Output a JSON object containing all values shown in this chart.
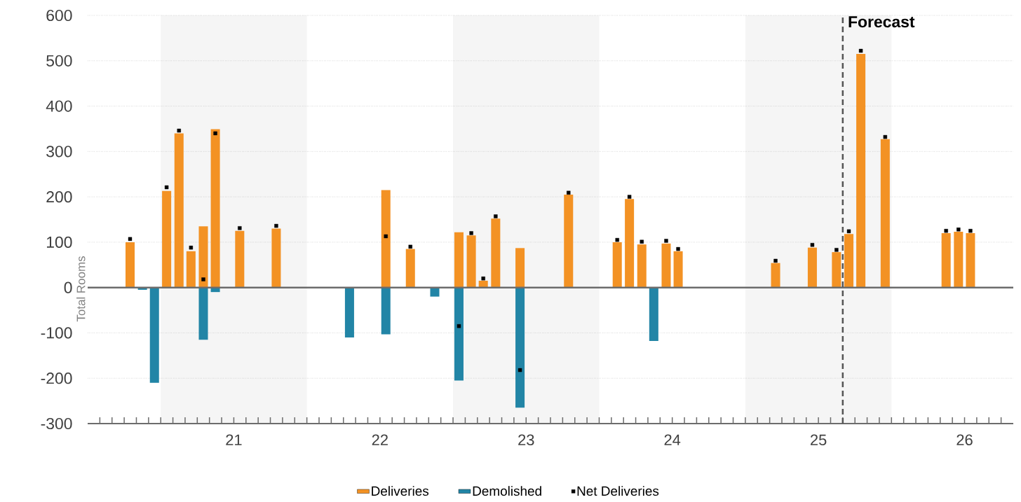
{
  "chart_data": {
    "type": "bar",
    "ylabel": "Total Rooms",
    "xlim": [
      "2020-07",
      "2026-11"
    ],
    "ylim": [
      -300,
      600
    ],
    "yticks": [
      -300,
      -200,
      -100,
      0,
      100,
      200,
      300,
      400,
      500,
      600
    ],
    "xticks": [
      {
        "value": "2020-08",
        "label": null
      },
      {
        "value": "2020-09",
        "label": null
      },
      {
        "value": "2020-10",
        "label": null
      },
      {
        "value": "2020-11",
        "label": null
      },
      {
        "value": "2020-12",
        "label": null
      },
      {
        "value": "2021-01",
        "label": null
      },
      {
        "value": "2021-02",
        "label": null
      },
      {
        "value": "2021-03",
        "label": null
      },
      {
        "value": "2021-04",
        "label": null
      },
      {
        "value": "2021-05",
        "label": null
      },
      {
        "value": "2021-06",
        "label": null
      },
      {
        "value": "2021-07",
        "label": "21"
      },
      {
        "value": "2021-08",
        "label": null
      },
      {
        "value": "2021-09",
        "label": null
      },
      {
        "value": "2021-10",
        "label": null
      },
      {
        "value": "2021-11",
        "label": null
      },
      {
        "value": "2021-12",
        "label": null
      },
      {
        "value": "2022-01",
        "label": null
      },
      {
        "value": "2022-02",
        "label": null
      },
      {
        "value": "2022-03",
        "label": null
      },
      {
        "value": "2022-04",
        "label": null
      },
      {
        "value": "2022-05",
        "label": null
      },
      {
        "value": "2022-06",
        "label": null
      },
      {
        "value": "2022-07",
        "label": "22"
      },
      {
        "value": "2022-08",
        "label": null
      },
      {
        "value": "2022-09",
        "label": null
      },
      {
        "value": "2022-10",
        "label": null
      },
      {
        "value": "2022-11",
        "label": null
      },
      {
        "value": "2022-12",
        "label": null
      },
      {
        "value": "2023-01",
        "label": null
      },
      {
        "value": "2023-02",
        "label": null
      },
      {
        "value": "2023-03",
        "label": null
      },
      {
        "value": "2023-04",
        "label": null
      },
      {
        "value": "2023-05",
        "label": null
      },
      {
        "value": "2023-06",
        "label": null
      },
      {
        "value": "2023-07",
        "label": "23"
      },
      {
        "value": "2023-08",
        "label": null
      },
      {
        "value": "2023-09",
        "label": null
      },
      {
        "value": "2023-10",
        "label": null
      },
      {
        "value": "2023-11",
        "label": null
      },
      {
        "value": "2023-12",
        "label": null
      },
      {
        "value": "2024-01",
        "label": null
      },
      {
        "value": "2024-02",
        "label": null
      },
      {
        "value": "2024-03",
        "label": null
      },
      {
        "value": "2024-04",
        "label": null
      },
      {
        "value": "2024-05",
        "label": null
      },
      {
        "value": "2024-06",
        "label": null
      },
      {
        "value": "2024-07",
        "label": "24"
      },
      {
        "value": "2024-08",
        "label": null
      },
      {
        "value": "2024-09",
        "label": null
      },
      {
        "value": "2024-10",
        "label": null
      },
      {
        "value": "2024-11",
        "label": null
      },
      {
        "value": "2024-12",
        "label": null
      },
      {
        "value": "2025-01",
        "label": null
      },
      {
        "value": "2025-02",
        "label": null
      },
      {
        "value": "2025-03",
        "label": null
      },
      {
        "value": "2025-04",
        "label": null
      },
      {
        "value": "2025-05",
        "label": null
      },
      {
        "value": "2025-06",
        "label": null
      },
      {
        "value": "2025-07",
        "label": "25"
      },
      {
        "value": "2025-08",
        "label": null
      },
      {
        "value": "2025-09",
        "label": null
      },
      {
        "value": "2025-10",
        "label": null
      },
      {
        "value": "2025-11",
        "label": null
      },
      {
        "value": "2025-12",
        "label": null
      },
      {
        "value": "2026-01",
        "label": null
      },
      {
        "value": "2026-02",
        "label": null
      },
      {
        "value": "2026-03",
        "label": null
      },
      {
        "value": "2026-04",
        "label": null
      },
      {
        "value": "2026-05",
        "label": null
      },
      {
        "value": "2026-06",
        "label": null
      },
      {
        "value": "2026-07",
        "label": "26"
      },
      {
        "value": "2026-08",
        "label": null
      },
      {
        "value": "2026-09",
        "label": null
      },
      {
        "value": "2026-10",
        "label": null
      }
    ],
    "grid": "y",
    "legend": "bottom",
    "bands": [
      {
        "axis": "x",
        "from": "2021-01",
        "to": "2022-01",
        "color": "#f5f5f5"
      },
      {
        "axis": "x",
        "from": "2023-01",
        "to": "2024-01",
        "color": "#f5f5f5"
      },
      {
        "axis": "x",
        "from": "2025-01",
        "to": "2026-01",
        "color": "#f5f5f5"
      }
    ],
    "ref_lines": [
      {
        "axis": "x",
        "value": "2025-09",
        "label": "Forecast",
        "color": "#555555",
        "line_style": "dashed"
      }
    ],
    "series": [
      {
        "name": "Deliveries",
        "color": "#f39224",
        "x": [
          "2020-10-16",
          "2021-01-16",
          "2021-02-15",
          "2021-03-16",
          "2021-04-16",
          "2021-05-16",
          "2021-07-16",
          "2021-10-16",
          "2022-07-16",
          "2022-09-16",
          "2023-01-16",
          "2023-02-15",
          "2023-03-16",
          "2023-04-16",
          "2023-06-16",
          "2023-10-16",
          "2024-02-15",
          "2024-03-16",
          "2024-04-16",
          "2024-06-16",
          "2024-07-16",
          "2025-03-16",
          "2025-06-16",
          "2025-08-16",
          "2025-09-16",
          "2025-10-16",
          "2025-12-16",
          "2026-05-16",
          "2026-06-16",
          "2026-07-16"
        ],
        "values": [
          100,
          213,
          340,
          80,
          135,
          349,
          125,
          130,
          215,
          85,
          122,
          115,
          15,
          152,
          87,
          205,
          100,
          195,
          95,
          97,
          80,
          54,
          88,
          78,
          118,
          515,
          327,
          120,
          123,
          120
        ]
      },
      {
        "name": "Demolished",
        "color": "#2285a6",
        "x": [
          "2020-11-16",
          "2020-12-16",
          "2021-04-16",
          "2021-05-16",
          "2022-04-16",
          "2022-07-16",
          "2022-11-16",
          "2023-01-16",
          "2023-06-16",
          "2024-05-16"
        ],
        "values": [
          -5,
          -210,
          -115,
          -10,
          -110,
          -103,
          -20,
          -205,
          -265,
          -118
        ]
      },
      {
        "name": "Net Deliveries",
        "type": "scatter",
        "marker": "square",
        "color": "#000000",
        "x": [
          "2020-10-16",
          "2021-01-16",
          "2021-02-15",
          "2021-03-16",
          "2021-04-16",
          "2021-05-16",
          "2021-07-16",
          "2021-10-16",
          "2022-07-16",
          "2022-09-16",
          "2023-01-16",
          "2023-02-15",
          "2023-03-16",
          "2023-04-16",
          "2023-06-16",
          "2023-10-16",
          "2024-02-15",
          "2024-03-16",
          "2024-04-16",
          "2024-06-16",
          "2024-07-16",
          "2025-03-16",
          "2025-06-16",
          "2025-08-16",
          "2025-09-16",
          "2025-10-16",
          "2025-12-16",
          "2026-05-16",
          "2026-06-16",
          "2026-07-16"
        ],
        "values": [
          107,
          221,
          346,
          88,
          18,
          340,
          131,
          136,
          113,
          90,
          -85,
          120,
          20,
          157,
          -182,
          209,
          105,
          200,
          101,
          103,
          85,
          59,
          94,
          83,
          124,
          522,
          332,
          125,
          128,
          125
        ]
      }
    ]
  }
}
